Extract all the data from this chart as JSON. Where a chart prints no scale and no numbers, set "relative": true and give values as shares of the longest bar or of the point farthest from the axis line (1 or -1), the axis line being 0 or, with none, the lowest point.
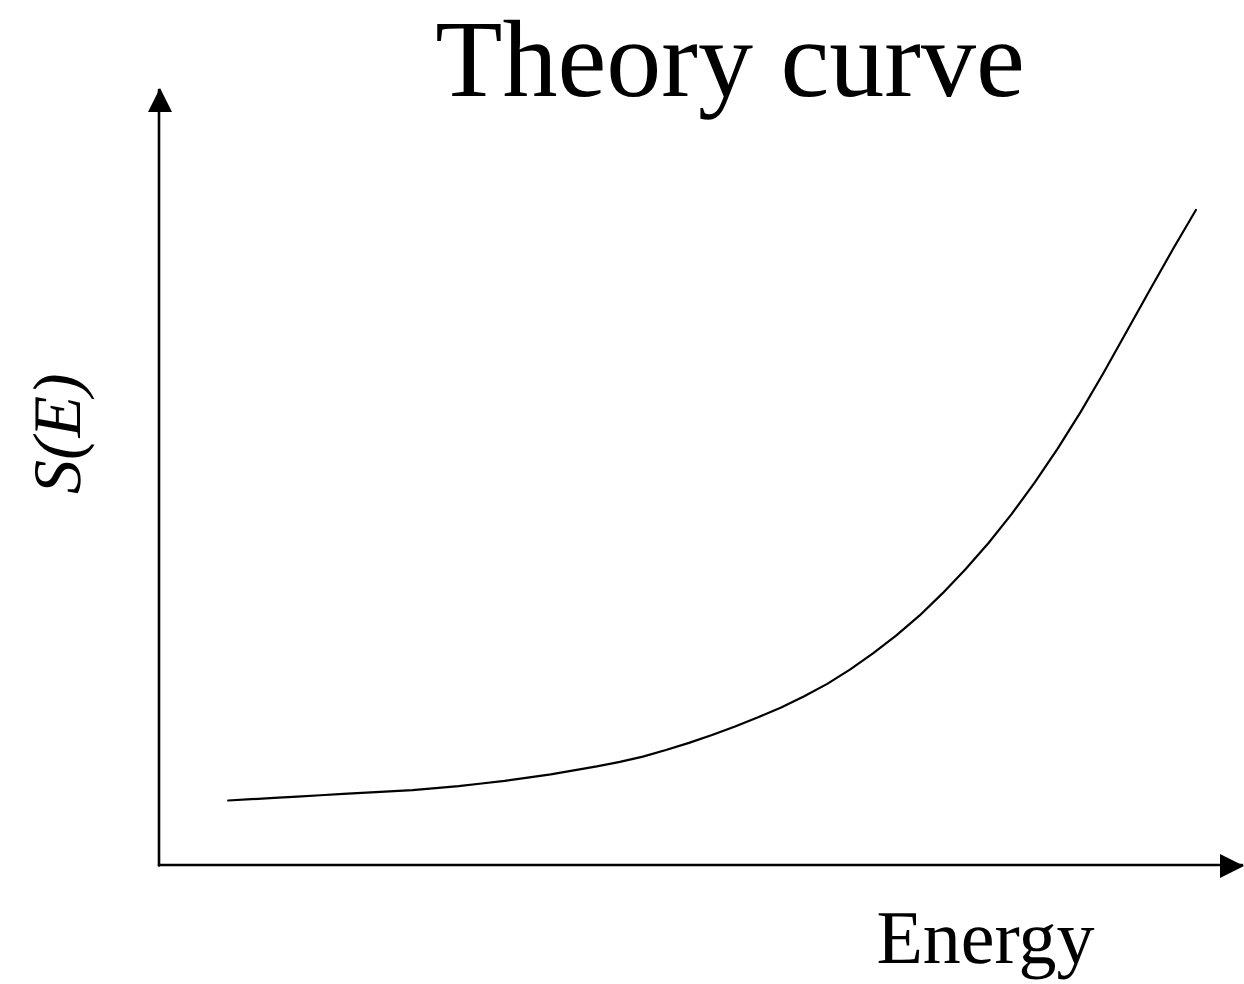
{
  "chart_data": {
    "type": "line",
    "title": "Theory curve",
    "xlabel": "Energy",
    "ylabel": "S(E)",
    "relative": true,
    "categories": [
      null,
      null,
      null,
      null,
      null,
      null,
      null,
      null,
      null,
      null,
      null,
      null,
      null,
      null,
      null,
      null,
      null,
      null,
      null,
      null,
      null,
      null,
      null,
      null,
      null,
      null,
      null,
      null,
      null,
      null,
      null,
      null,
      null,
      null,
      null,
      null,
      null,
      null,
      null,
      null,
      null,
      null,
      null,
      null,
      null,
      null,
      null,
      null
    ],
    "color": "#000000",
    "values": [
      null,
      null,
      null,
      0.099,
      0.101,
      0.103,
      0.105,
      0.107,
      0.109,
      0.111,
      0.113,
      0.115,
      0.118,
      0.121,
      0.125,
      0.129,
      0.134,
      0.139,
      0.145,
      0.151,
      0.158,
      0.166,
      0.176,
      0.187,
      0.199,
      0.212,
      0.226,
      0.241,
      0.258,
      0.277,
      0.299,
      0.324,
      0.351,
      0.381,
      0.415,
      0.452,
      0.492,
      0.536,
      0.584,
      0.636,
      0.692,
      0.752,
      0.815,
      0.878,
      0.94,
      1.0,
      null,
      null
    ]
  }
}
